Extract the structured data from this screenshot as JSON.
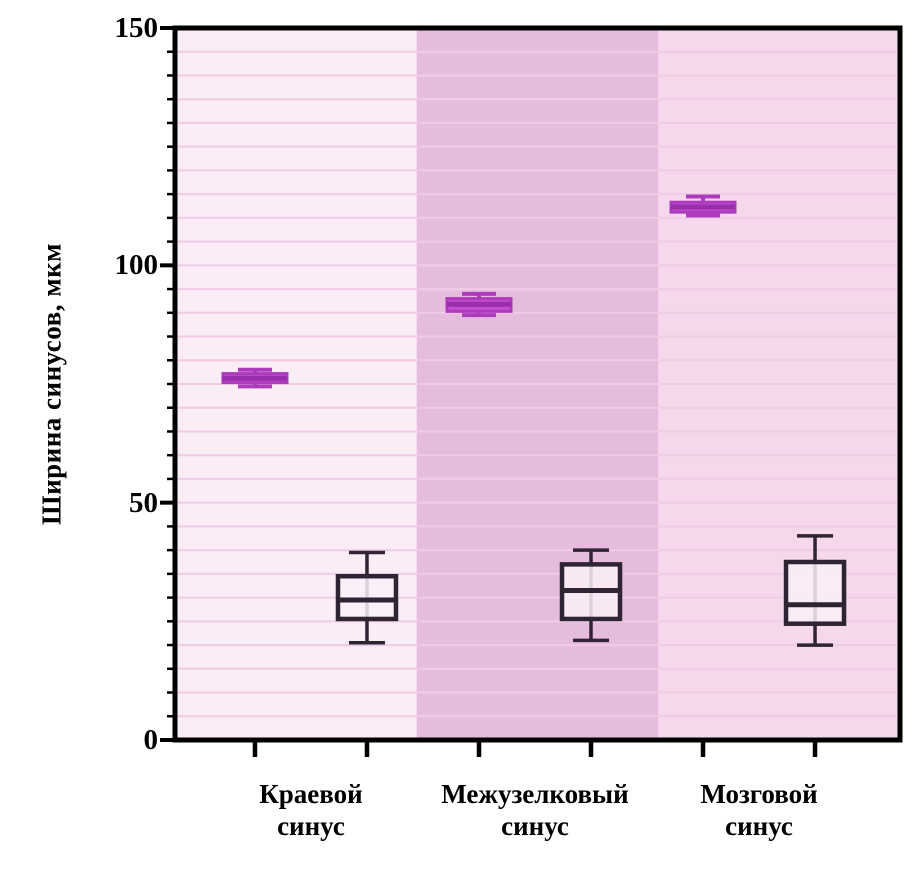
{
  "chart_data": {
    "type": "boxplot",
    "title": "",
    "ylabel": "Ширина синусов, мкм",
    "xlabel": "",
    "ylim": [
      0,
      150
    ],
    "yticks": [
      "0",
      "50",
      "100",
      "150"
    ],
    "ytick_values": [
      0,
      50,
      100,
      150
    ],
    "minor_tick_step": 5,
    "grid": "horizontal minor gridlines every 5 units",
    "legend": "none",
    "categories": [
      "Краевой синус",
      "Межузелковый синус",
      "Мозговой синус"
    ],
    "background_bands": [
      "#faedf5",
      "#e6bcdc",
      "#f6d8ec"
    ],
    "gridline_color": "#f0cbe5",
    "axis_color": "#000000",
    "series": [
      {
        "name": "magenta-series",
        "color": "#c44fd0",
        "slots": [
          0,
          2,
          4
        ],
        "boxes": [
          {
            "whisker_low": 74.5,
            "q1": 75.3,
            "median": 76.2,
            "q3": 77.2,
            "whisker_high": 78.0
          },
          {
            "whisker_low": 89.5,
            "q1": 90.3,
            "median": 91.8,
            "q3": 93.0,
            "whisker_high": 94.0
          },
          {
            "whisker_low": 110.5,
            "q1": 111.2,
            "median": 112.3,
            "q3": 113.3,
            "whisker_high": 114.5
          }
        ]
      },
      {
        "name": "dark-outline-series",
        "color": "#2f2433",
        "slots": [
          1,
          3,
          5
        ],
        "boxes": [
          {
            "whisker_low": 20.5,
            "q1": 25.5,
            "median": 29.5,
            "q3": 34.5,
            "whisker_high": 39.5
          },
          {
            "whisker_low": 21.0,
            "q1": 25.5,
            "median": 31.5,
            "q3": 37.0,
            "whisker_high": 40.0
          },
          {
            "whisker_low": 20.0,
            "q1": 24.5,
            "median": 28.5,
            "q3": 37.5,
            "whisker_high": 43.0
          }
        ]
      }
    ]
  }
}
